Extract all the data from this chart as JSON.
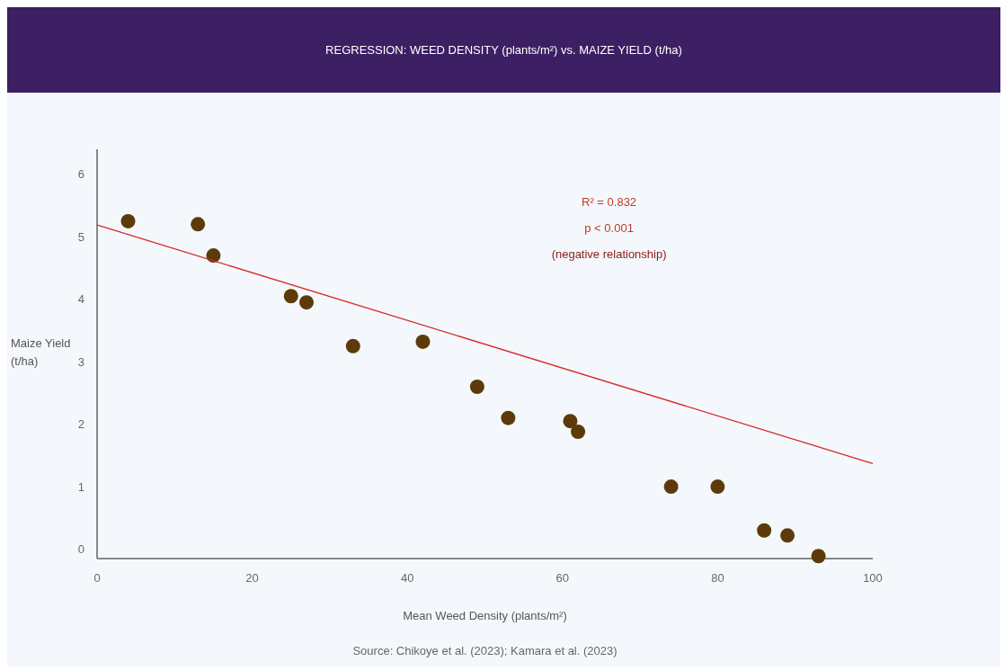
{
  "chart_data": {
    "type": "scatter",
    "title": "REGRESSION: WEED DENSITY (plants/m²) vs. MAIZE YIELD (t/ha)",
    "xlabel": "Mean Weed Density (plants/m²)",
    "ylabel": "Maize Yield (t/ha)",
    "annotations": [
      "R² = 0.832",
      "p < 0.001",
      "(negative relationship)",
      "Source: Chikoye et al. (2023); Kamara et al. (2023)"
    ],
    "xlim": [
      0,
      100
    ],
    "xticks": [
      0,
      20,
      40,
      60,
      80,
      100
    ],
    "ylim": [
      -0.15,
      6.4
    ],
    "yticks": [
      0,
      1,
      2,
      3,
      4,
      5,
      6
    ],
    "grid": false,
    "series": [
      {
        "marker": "circle",
        "color": "#5c3a0a",
        "x": [
          4,
          13,
          15,
          25,
          27,
          33,
          42,
          49,
          53,
          61,
          62,
          74,
          80,
          86,
          89,
          93
        ],
        "values": [
          5.25,
          5.2,
          4.7,
          4.05,
          3.95,
          3.25,
          3.32,
          2.6,
          2.1,
          2.05,
          1.88,
          1.0,
          1.0,
          0.3,
          0.22,
          -0.11
        ]
      },
      {
        "type": "line",
        "color": "#d62728",
        "x": [
          0,
          100
        ],
        "values": [
          5.19,
          1.37
        ]
      }
    ]
  }
}
